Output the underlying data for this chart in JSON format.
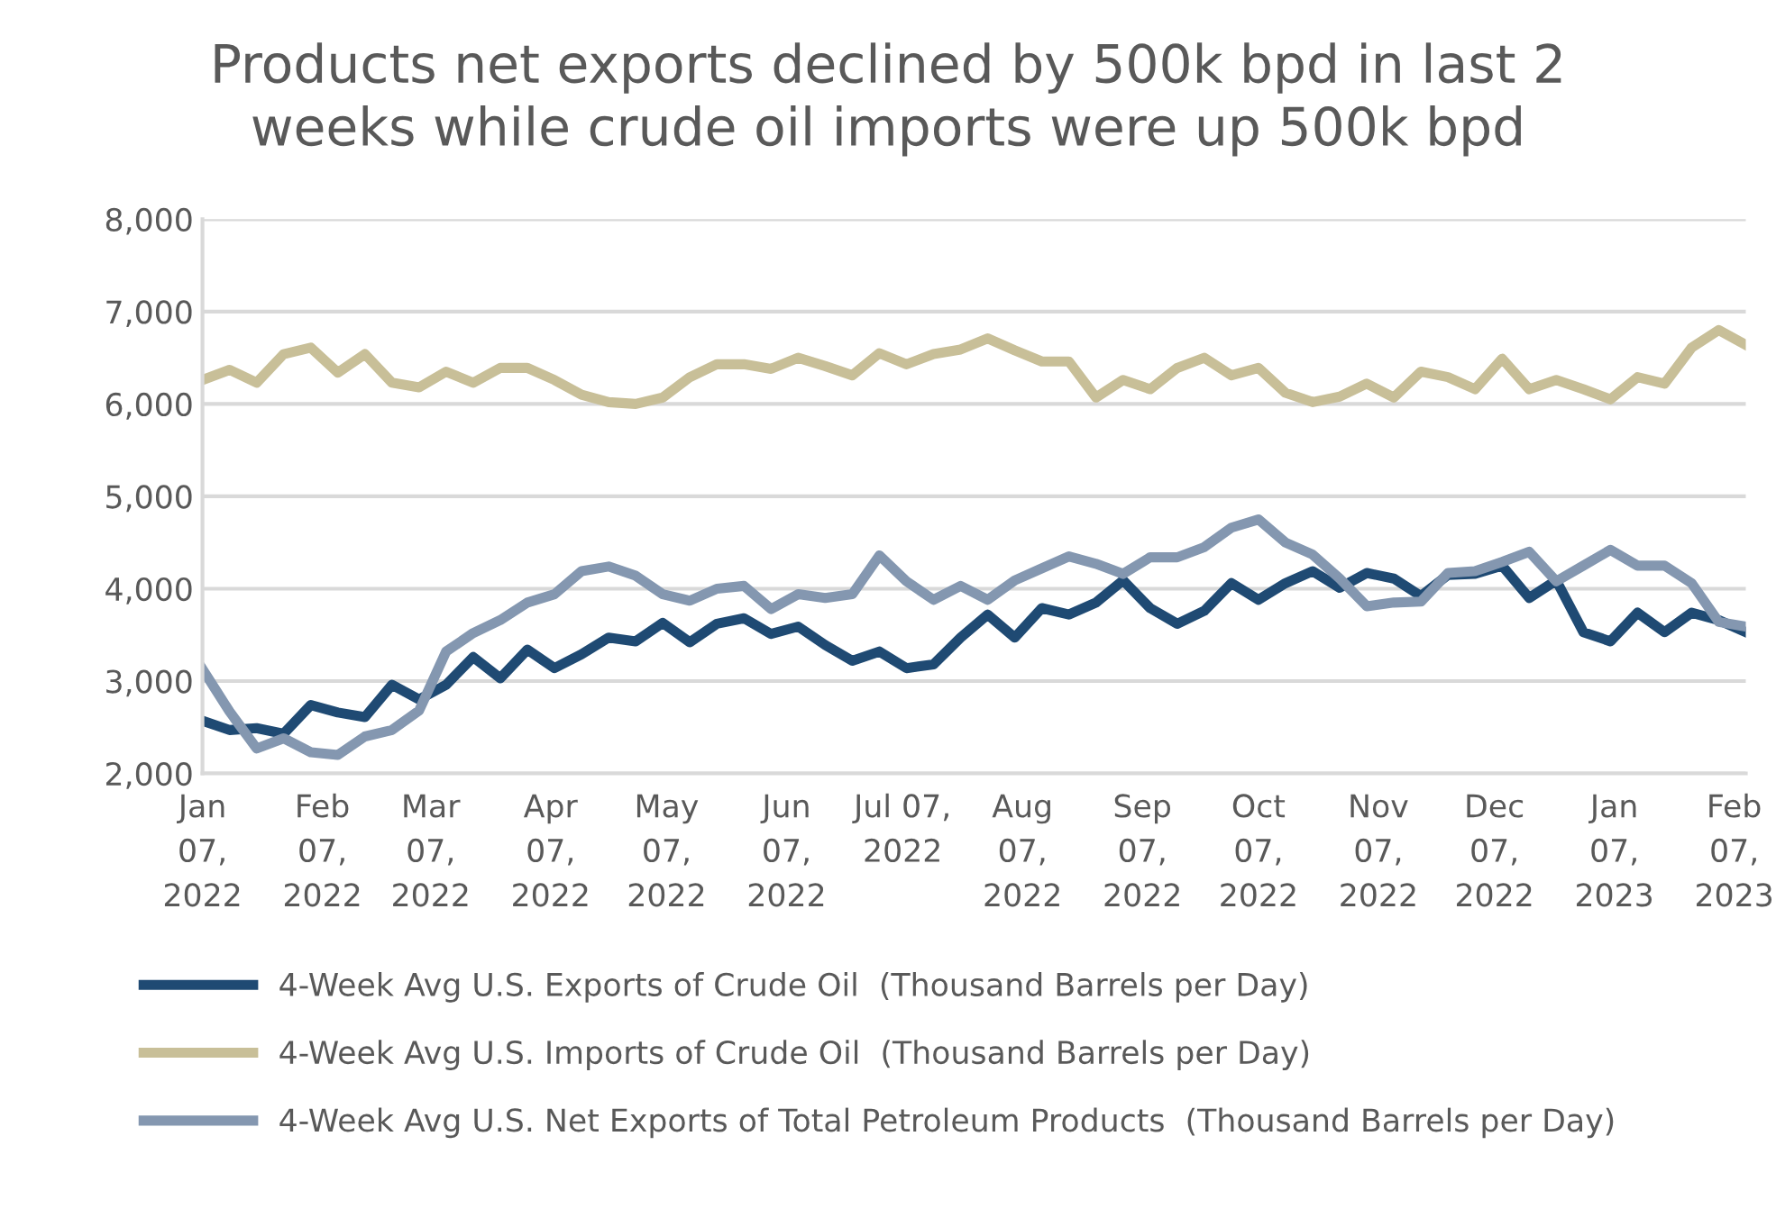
{
  "chart_data": {
    "type": "line",
    "title": "Products net exports declined by 500k bpd in last 2\nweeks while crude oil imports were up 500k bpd",
    "x": [
      "2022-01-07",
      "2022-01-14",
      "2022-01-21",
      "2022-01-28",
      "2022-02-04",
      "2022-02-11",
      "2022-02-18",
      "2022-02-25",
      "2022-03-04",
      "2022-03-11",
      "2022-03-18",
      "2022-03-25",
      "2022-04-01",
      "2022-04-08",
      "2022-04-15",
      "2022-04-22",
      "2022-04-29",
      "2022-05-06",
      "2022-05-13",
      "2022-05-20",
      "2022-05-27",
      "2022-06-03",
      "2022-06-10",
      "2022-06-17",
      "2022-06-24",
      "2022-07-01",
      "2022-07-08",
      "2022-07-15",
      "2022-07-22",
      "2022-07-29",
      "2022-08-05",
      "2022-08-12",
      "2022-08-19",
      "2022-08-26",
      "2022-09-02",
      "2022-09-09",
      "2022-09-16",
      "2022-09-23",
      "2022-09-30",
      "2022-10-07",
      "2022-10-14",
      "2022-10-21",
      "2022-10-28",
      "2022-11-04",
      "2022-11-11",
      "2022-11-18",
      "2022-11-25",
      "2022-12-02",
      "2022-12-09",
      "2022-12-16",
      "2022-12-23",
      "2022-12-30",
      "2023-01-06",
      "2023-01-13",
      "2023-01-20",
      "2023-01-27",
      "2023-02-03",
      "2023-02-10"
    ],
    "series": [
      {
        "name": "4-Week Avg U.S. Exports of Crude Oil  (Thousand Barrels per Day)",
        "color": "#1f4a73",
        "values": [
          2570,
          2470,
          2490,
          2430,
          2740,
          2660,
          2610,
          2960,
          2800,
          2960,
          3260,
          3030,
          3340,
          3140,
          3290,
          3470,
          3430,
          3630,
          3420,
          3620,
          3680,
          3510,
          3590,
          3390,
          3220,
          3320,
          3140,
          3180,
          3470,
          3720,
          3470,
          3790,
          3720,
          3850,
          4090,
          3790,
          3620,
          3760,
          4060,
          3880,
          4060,
          4190,
          4010,
          4170,
          4110,
          3920,
          4150,
          4160,
          4250,
          3900,
          4090,
          3530,
          3430,
          3740,
          3530,
          3740,
          3660,
          3530
        ]
      },
      {
        "name": "4-Week Avg U.S. Imports of Crude Oil  (Thousand Barrels per Day)",
        "color": "#c8bf98",
        "values": [
          6260,
          6370,
          6230,
          6540,
          6610,
          6340,
          6540,
          6230,
          6180,
          6350,
          6230,
          6390,
          6390,
          6260,
          6100,
          6020,
          6000,
          6070,
          6290,
          6430,
          6430,
          6380,
          6500,
          6410,
          6310,
          6550,
          6430,
          6540,
          6590,
          6710,
          6580,
          6460,
          6460,
          6070,
          6260,
          6160,
          6390,
          6500,
          6310,
          6390,
          6120,
          6020,
          6080,
          6220,
          6070,
          6350,
          6290,
          6160,
          6490,
          6160,
          6260,
          6160,
          6050,
          6290,
          6220,
          6610,
          6800,
          6640
        ]
      },
      {
        "name": "4-Week Avg U.S. Net Exports of Total Petroleum Products  (Thousand Barrels per Day)",
        "color": "#8497b0",
        "values": [
          3130,
          2670,
          2270,
          2380,
          2230,
          2200,
          2400,
          2470,
          2680,
          3320,
          3520,
          3660,
          3850,
          3940,
          4190,
          4240,
          4140,
          3940,
          3870,
          4000,
          4030,
          3780,
          3940,
          3900,
          3940,
          4360,
          4080,
          3880,
          4030,
          3880,
          4090,
          4220,
          4350,
          4270,
          4160,
          4340,
          4340,
          4450,
          4660,
          4750,
          4500,
          4370,
          4110,
          3810,
          3850,
          3860,
          4170,
          4190,
          4290,
          4400,
          4080,
          4250,
          4420,
          4250,
          4250,
          4060,
          3640,
          3590
        ]
      }
    ],
    "xlim": [
      "2022-01-07",
      "2023-02-10"
    ],
    "xticks": [
      {
        "value": "2022-01-07",
        "label": "Jan\n07,\n2022"
      },
      {
        "value": "2022-02-07",
        "label": "Feb\n07,\n2022"
      },
      {
        "value": "2022-03-07",
        "label": "Mar\n07,\n2022"
      },
      {
        "value": "2022-04-07",
        "label": "Apr\n07,\n2022"
      },
      {
        "value": "2022-05-07",
        "label": "May\n07,\n2022"
      },
      {
        "value": "2022-06-07",
        "label": "Jun\n07,\n2022"
      },
      {
        "value": "2022-07-07",
        "label": "Jul 07,\n2022"
      },
      {
        "value": "2022-08-07",
        "label": "Aug\n07,\n2022"
      },
      {
        "value": "2022-09-07",
        "label": "Sep\n07,\n2022"
      },
      {
        "value": "2022-10-07",
        "label": "Oct\n07,\n2022"
      },
      {
        "value": "2022-11-07",
        "label": "Nov\n07,\n2022"
      },
      {
        "value": "2022-12-07",
        "label": "Dec\n07,\n2022"
      },
      {
        "value": "2023-01-07",
        "label": "Jan\n07,\n2023"
      },
      {
        "value": "2023-02-07",
        "label": "Feb\n07,\n2023"
      }
    ],
    "ylim": [
      2000,
      8000
    ],
    "yticks": [
      {
        "value": 2000,
        "label": "2,000"
      },
      {
        "value": 3000,
        "label": "3,000"
      },
      {
        "value": 4000,
        "label": "4,000"
      },
      {
        "value": 5000,
        "label": "5,000"
      },
      {
        "value": 6000,
        "label": "6,000"
      },
      {
        "value": 7000,
        "label": "7,000"
      },
      {
        "value": 8000,
        "label": "8,000"
      }
    ],
    "grid": "y",
    "legend": "bottom",
    "marker": "none",
    "line_style": "solid"
  }
}
